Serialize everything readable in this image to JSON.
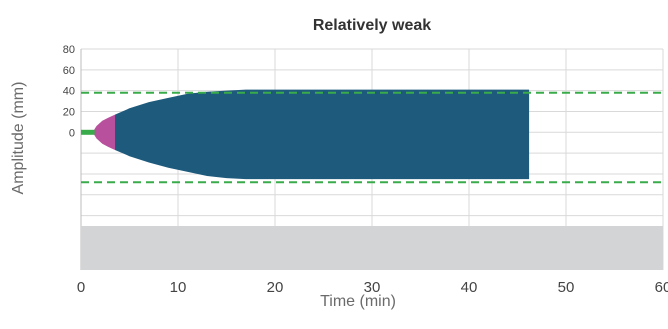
{
  "chart_data": {
    "type": "area",
    "title": "Relatively weak",
    "xlabel": "Time (min)",
    "ylabel": "Amplitude (mm)",
    "xlim": [
      0,
      60
    ],
    "x_ticks": [
      0,
      10,
      20,
      30,
      40,
      50,
      60
    ],
    "x_tick_labels": [
      "0",
      "10",
      "20",
      "30",
      "40",
      "50",
      "60"
    ],
    "ylim": [
      -90,
      80
    ],
    "y_ticks": [
      0,
      20,
      40,
      60,
      80
    ],
    "y_tick_labels": [
      "0",
      "20",
      "40",
      "60",
      "80"
    ],
    "grid": true,
    "reference_lines": {
      "style": "dashed",
      "color": "#3aab4a",
      "values": [
        38,
        -48
      ]
    },
    "baseline": {
      "color": "#3aab4a",
      "x": [
        0,
        1.2
      ],
      "value": 0
    },
    "bands": [
      {
        "color": "#b8509e",
        "x": [
          1.2,
          1.6,
          2.2,
          2.8,
          3.5
        ],
        "upper": [
          0,
          6,
          11,
          14,
          17
        ],
        "lower": [
          0,
          -6,
          -11,
          -14,
          -17
        ]
      },
      {
        "color": "#1d5a7c",
        "x": [
          3.5,
          5,
          7,
          9,
          11,
          13,
          15,
          17,
          20,
          30,
          40,
          46.2
        ],
        "upper": [
          17,
          23,
          29,
          33,
          37,
          39,
          40,
          41,
          41,
          41,
          41,
          41
        ],
        "lower": [
          -17,
          -23,
          -29,
          -34,
          -38,
          -42,
          -44,
          -45,
          -45,
          -45,
          -45,
          -45
        ]
      }
    ],
    "footer_bar_color": "#d3d4d6"
  }
}
